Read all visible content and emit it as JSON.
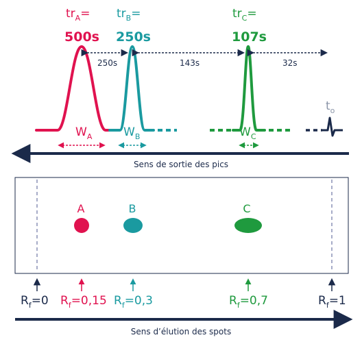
{
  "colors": {
    "A": "#e0124f",
    "B": "#1a9aa0",
    "C": "#1f9a3e",
    "navy": "#1b2a4a",
    "t0": "#8b95a8",
    "dash": "#8a90b5"
  },
  "peaks": {
    "A": {
      "tr_base": "tr",
      "tr_sub": "A",
      "tr_eq": "=",
      "tr_value": "500s",
      "w_base": "W",
      "w_sub": "A"
    },
    "B": {
      "tr_base": "tr",
      "tr_sub": "B",
      "tr_eq": "=",
      "tr_value": "250s",
      "w_base": "W",
      "w_sub": "B"
    },
    "C": {
      "tr_base": "tr",
      "tr_sub": "C",
      "tr_eq": "=",
      "tr_value": "107s",
      "w_base": "W",
      "w_sub": "C"
    },
    "t0": {
      "base": "t",
      "sub": "o"
    }
  },
  "gaps": [
    "250s",
    "143s",
    "32s"
  ],
  "peak_axis_label": "Sens de sortie des pics",
  "spots": [
    "A",
    "B",
    "C"
  ],
  "rf": [
    {
      "base": "R",
      "sub": "f",
      "value": "=0"
    },
    {
      "base": "R",
      "sub": "f",
      "value": "=0,15"
    },
    {
      "base": "R",
      "sub": "f",
      "value": "=0,3"
    },
    {
      "base": "R",
      "sub": "f",
      "value": "=0,7"
    },
    {
      "base": "R",
      "sub": "f",
      "value": "=1"
    }
  ],
  "spot_axis_label": "Sens d’élution des spots"
}
